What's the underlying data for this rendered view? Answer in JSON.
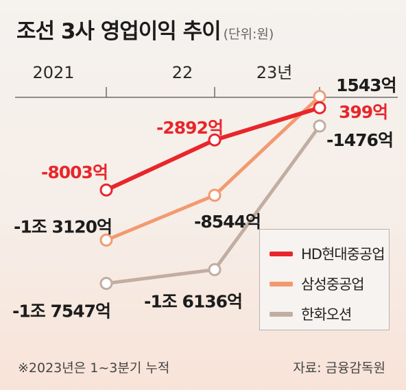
{
  "title": "조선 3사 영업이익 추이",
  "unit": "(단위:원)",
  "footnote": "※2023년은 1~3분기 누적",
  "source": "자료: 금융감독원",
  "chart_data": {
    "type": "line",
    "title": "조선 3사 영업이익 추이",
    "categories": [
      "2021",
      "22",
      "23년"
    ],
    "series": [
      {
        "name": "HD현대중공업",
        "color": "#e8262b",
        "values": [
          -8003,
          -2892,
          399
        ],
        "labels": [
          "-8003억",
          "-2892억",
          "399억"
        ]
      },
      {
        "name": "삼성중공업",
        "color": "#f29a6f",
        "values": [
          -13120,
          -8544,
          1543
        ],
        "labels": [
          "-1조 3120억",
          "-8544억",
          "1543억"
        ]
      },
      {
        "name": "한화오션",
        "color": "#c1ada1",
        "values": [
          -17547,
          -16136,
          -1476
        ],
        "labels": [
          "-1조 7547억",
          "-1조 6136억",
          "-1476억"
        ]
      }
    ],
    "legend": "bottom-right",
    "grid": false
  }
}
